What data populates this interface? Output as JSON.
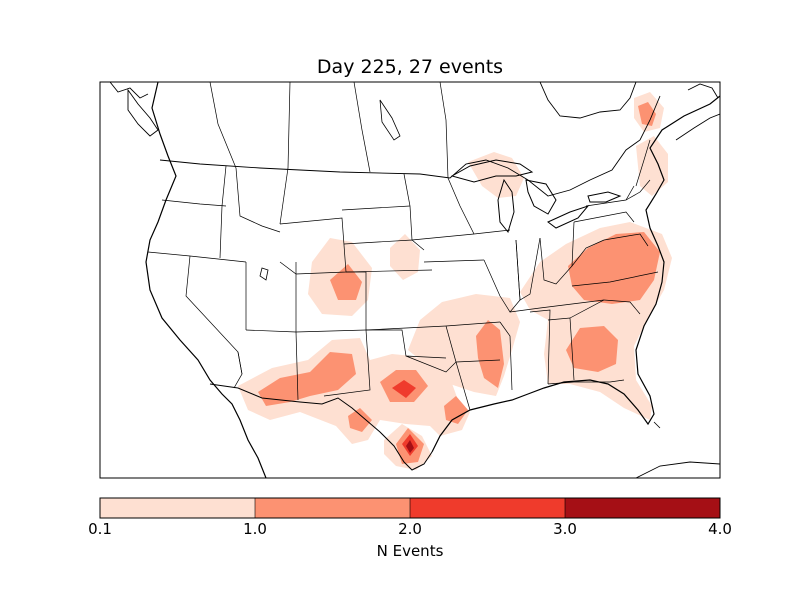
{
  "title": "Day 225, 27 events",
  "colorbar": {
    "label": "N Events",
    "ticks": [
      "0.1",
      "1.0",
      "2.0",
      "3.0",
      "4.0"
    ],
    "bin_colors": [
      "#fee0d2",
      "#fc9272",
      "#ef3b2c",
      "#a50f15"
    ]
  },
  "map": {
    "projection": "lambert-conformal",
    "region": "Continental United States",
    "background": "#ffffff",
    "outline_color": "#000000"
  }
}
